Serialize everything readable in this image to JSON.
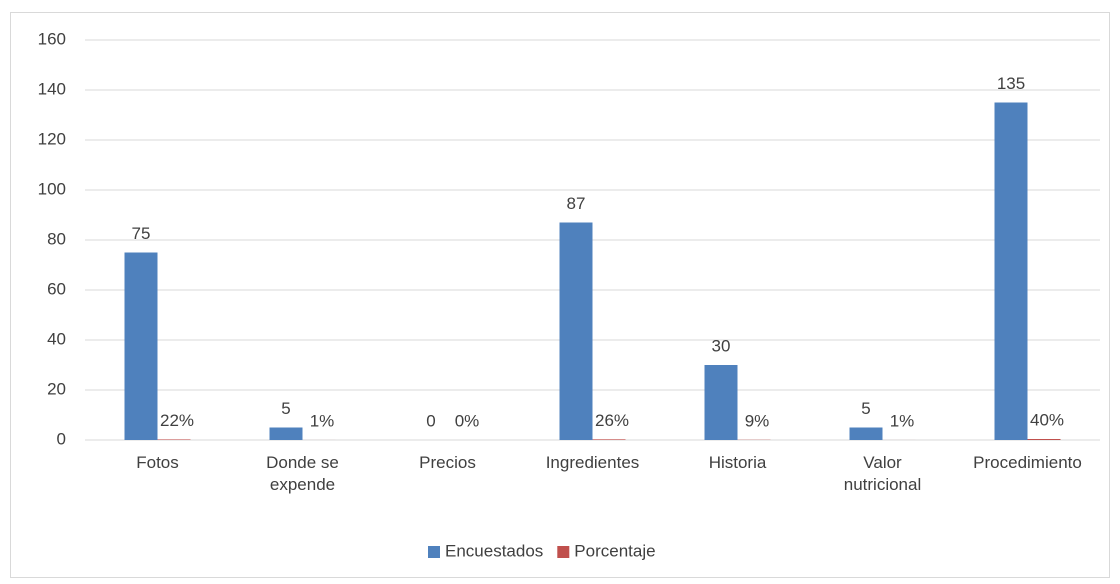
{
  "chart_data": {
    "type": "bar",
    "categories": [
      "Fotos",
      "Donde se expende",
      "Precios",
      "Ingredientes",
      "Historia",
      "Valor nutricional",
      "Procedimiento"
    ],
    "series": [
      {
        "name": "Encuestados",
        "color": "#4f81bd",
        "values": [
          75,
          5,
          0,
          87,
          30,
          5,
          135
        ]
      },
      {
        "name": "Porcentaje",
        "color": "#c0504d",
        "values": [
          0.22,
          0.01,
          0,
          0.26,
          0.09,
          0.01,
          0.4
        ],
        "value_labels": [
          "22%",
          "1%",
          "0%",
          "26%",
          "9%",
          "1%",
          "40%"
        ]
      }
    ],
    "ylim": [
      0,
      160
    ],
    "yticks": [
      0,
      20,
      40,
      60,
      80,
      100,
      120,
      140,
      160
    ],
    "grid": true,
    "legend": "bottom"
  }
}
